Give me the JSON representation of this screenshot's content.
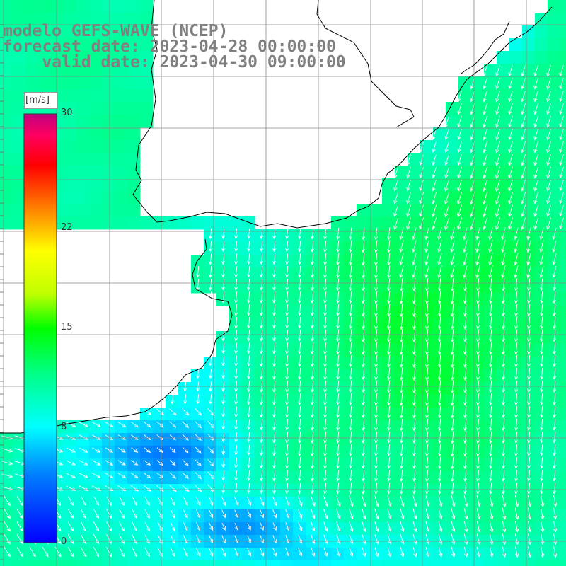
{
  "header": {
    "line1": "modelo GEFS-WAVE (NCEP)",
    "line2": "forecast date: 2023-04-28 00:00:00",
    "line3": "    valid date: 2023-04-30 09:00:00"
  },
  "legend": {
    "unit": "[m/s]",
    "ticks": [
      {
        "value": 30,
        "label": "30"
      },
      {
        "value": 22,
        "label": "22"
      },
      {
        "value": 15,
        "label": "15"
      },
      {
        "value": 8,
        "label": "8"
      },
      {
        "value": 0,
        "label": "0"
      }
    ],
    "colors": [
      "#0000ff",
      "#00c0ff",
      "#00ffff",
      "#00ff40",
      "#ffff00",
      "#ff8000",
      "#ff0000",
      "#ff0080",
      "#c0007f"
    ]
  },
  "field": {
    "variable": "wind speed",
    "units": "m/s",
    "arrow_color": "#ffffff",
    "land_color": "#ffffff",
    "coast_color": "#000000",
    "grid_color": "#888888"
  }
}
